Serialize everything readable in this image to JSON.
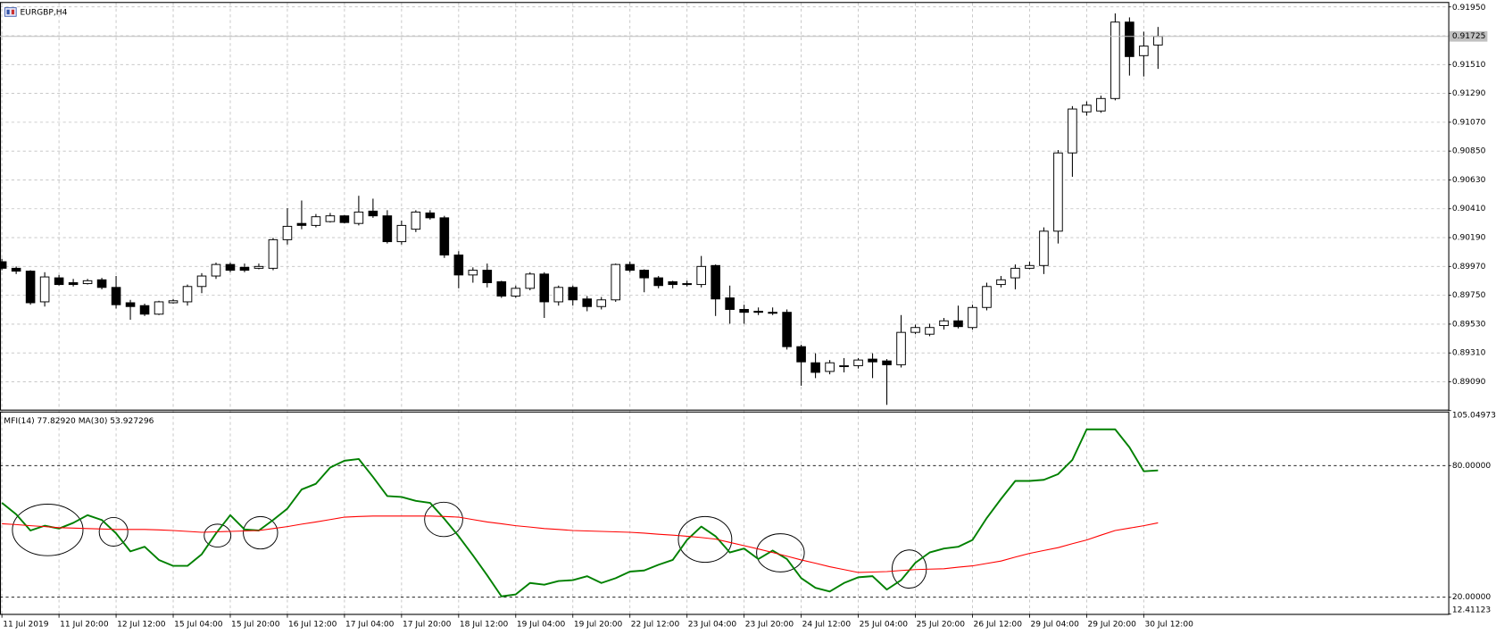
{
  "chart_data": [
    {
      "type": "candlestick",
      "title": "EURGBP,H4",
      "categories": [
        "11 Jul 2019",
        null,
        null,
        null,
        "11 Jul 20:00",
        null,
        null,
        null,
        "12 Jul 12:00",
        null,
        null,
        null,
        "15 Jul 04:00",
        null,
        null,
        null,
        "15 Jul 20:00",
        null,
        null,
        null,
        "16 Jul 12:00",
        null,
        null,
        null,
        "17 Jul 04:00",
        null,
        null,
        null,
        "17 Jul 20:00",
        null,
        null,
        null,
        "18 Jul 12:00",
        null,
        null,
        null,
        "19 Jul 04:00",
        null,
        null,
        null,
        "19 Jul 20:00",
        null,
        null,
        null,
        "22 Jul 12:00",
        null,
        null,
        null,
        "23 Jul 04:00",
        null,
        null,
        null,
        "23 Jul 20:00",
        null,
        null,
        null,
        "24 Jul 12:00",
        null,
        null,
        null,
        "25 Jul 04:00",
        null,
        null,
        null,
        "25 Jul 20:00",
        null,
        null,
        null,
        "26 Jul 12:00",
        null,
        null,
        null,
        "29 Jul 04:00",
        null,
        null,
        null,
        "29 Jul 20:00",
        null,
        null,
        null,
        "30 Jul 12:00",
        null
      ],
      "open": [
        0.90006,
        0.89956,
        0.89934,
        0.897,
        0.89883,
        0.89846,
        0.89839,
        0.89868,
        0.8981,
        0.89693,
        0.89671,
        0.89606,
        0.89693,
        0.897,
        0.89817,
        0.89897,
        0.89985,
        0.89963,
        0.89956,
        0.89956,
        0.90174,
        0.90298,
        0.90283,
        0.90312,
        0.90356,
        0.90298,
        0.90392,
        0.90356,
        0.90159,
        0.90254,
        0.90378,
        0.90341,
        0.90057,
        0.89905,
        0.89941,
        0.89853,
        0.89744,
        0.89803,
        0.89912,
        0.897,
        0.8981,
        0.89722,
        0.89664,
        0.89715,
        0.89985,
        0.89941,
        0.89883,
        0.89853,
        0.89839,
        0.89832,
        0.89977,
        0.8973,
        0.89642,
        0.89628,
        0.8962,
        0.8962,
        0.89358,
        0.89235,
        0.89169,
        0.89206,
        0.89213,
        0.89263,
        0.89249,
        0.8922,
        0.89467,
        0.89453,
        0.89519,
        0.89555,
        0.89504,
        0.89657,
        0.89832,
        0.89883,
        0.89956,
        0.89977,
        0.90239,
        0.90836,
        0.91149,
        0.91156,
        0.91251,
        0.91834,
        0.91578,
        0.91659
      ],
      "high": [
        0.90028,
        0.8997,
        0.89941,
        0.89926,
        0.89905,
        0.89875,
        0.89875,
        0.89883,
        0.89897,
        0.89715,
        0.89686,
        0.89708,
        0.89722,
        0.89832,
        0.89919,
        0.89999,
        0.89999,
        0.89992,
        0.89992,
        0.90188,
        0.90414,
        0.90473,
        0.9037,
        0.90378,
        0.90363,
        0.90509,
        0.90487,
        0.90399,
        0.9032,
        0.90399,
        0.90399,
        0.90356,
        0.90086,
        0.89963,
        0.89992,
        0.89861,
        0.89824,
        0.89926,
        0.89926,
        0.89824,
        0.89824,
        0.89744,
        0.89737,
        0.89992,
        0.90006,
        0.89948,
        0.89897,
        0.89861,
        0.89861,
        0.9005,
        0.89985,
        0.89824,
        0.89678,
        0.89657,
        0.89657,
        0.89642,
        0.89373,
        0.89307,
        0.89256,
        0.89271,
        0.89271,
        0.89307,
        0.89263,
        0.89599,
        0.89526,
        0.89533,
        0.89577,
        0.89671,
        0.89678,
        0.89846,
        0.89897,
        0.89985,
        0.90006,
        0.90268,
        0.90858,
        0.91193,
        0.91229,
        0.91273,
        0.919,
        0.9187,
        0.91761,
        0.91797
      ],
      "low": [
        0.89941,
        0.89912,
        0.89678,
        0.89664,
        0.89824,
        0.89817,
        0.89832,
        0.89795,
        0.89649,
        0.89563,
        0.89592,
        0.89599,
        0.89686,
        0.89671,
        0.89766,
        0.89875,
        0.89926,
        0.89926,
        0.89948,
        0.89941,
        0.90137,
        0.90254,
        0.90268,
        0.90305,
        0.90298,
        0.90283,
        0.90341,
        0.90145,
        0.90137,
        0.90232,
        0.90327,
        0.90035,
        0.89803,
        0.89846,
        0.8981,
        0.8973,
        0.8973,
        0.89788,
        0.89577,
        0.89671,
        0.89671,
        0.89628,
        0.89642,
        0.897,
        0.89926,
        0.89773,
        0.89803,
        0.89803,
        0.89817,
        0.8981,
        0.89592,
        0.89533,
        0.89533,
        0.89599,
        0.89599,
        0.89336,
        0.8906,
        0.89118,
        0.89147,
        0.89162,
        0.89191,
        0.89118,
        0.88914,
        0.89199,
        0.89453,
        0.89438,
        0.89489,
        0.89497,
        0.89489,
        0.89635,
        0.8981,
        0.89795,
        0.89948,
        0.89912,
        0.90145,
        0.90654,
        0.9112,
        0.91142,
        0.91237,
        0.91426,
        0.91419,
        0.91477
      ],
      "close": [
        0.89956,
        0.89934,
        0.89693,
        0.8989,
        0.89832,
        0.89832,
        0.89861,
        0.8981,
        0.89678,
        0.89664,
        0.89606,
        0.897,
        0.89708,
        0.89817,
        0.89897,
        0.89985,
        0.89941,
        0.89941,
        0.8997,
        0.90174,
        0.90276,
        0.90283,
        0.90349,
        0.90356,
        0.90305,
        0.90385,
        0.90356,
        0.90159,
        0.90283,
        0.90385,
        0.90341,
        0.90057,
        0.89905,
        0.89941,
        0.89846,
        0.89744,
        0.89803,
        0.89912,
        0.897,
        0.8981,
        0.89715,
        0.89664,
        0.89715,
        0.89985,
        0.89941,
        0.89883,
        0.89824,
        0.89832,
        0.89832,
        0.8997,
        0.89722,
        0.89642,
        0.8962,
        0.8962,
        0.89613,
        0.89358,
        0.89242,
        0.89162,
        0.89235,
        0.89213,
        0.89256,
        0.89242,
        0.8922,
        0.89467,
        0.89504,
        0.89504,
        0.89555,
        0.89511,
        0.89657,
        0.89817,
        0.89868,
        0.89956,
        0.89977,
        0.90239,
        0.90836,
        0.91171,
        0.912,
        0.91251,
        0.91834,
        0.91571,
        0.91651,
        0.91725
      ],
      "up_color": "#ffffff",
      "down_color": "#000000",
      "ylim": [
        0.88885,
        0.9198
      ],
      "yticks": [
        {
          "value": 0.9195,
          "label": "0.91950"
        },
        {
          "value": 0.9173,
          "label": "0.91730"
        },
        {
          "value": 0.9151,
          "label": "0.91510"
        },
        {
          "value": 0.9129,
          "label": "0.91290"
        },
        {
          "value": 0.9107,
          "label": "0.91070"
        },
        {
          "value": 0.9085,
          "label": "0.90850"
        },
        {
          "value": 0.9063,
          "label": "0.90630"
        },
        {
          "value": 0.9041,
          "label": "0.90410"
        },
        {
          "value": 0.9019,
          "label": "0.90190"
        },
        {
          "value": 0.8997,
          "label": "0.89970"
        },
        {
          "value": 0.8975,
          "label": "0.89750"
        },
        {
          "value": 0.8953,
          "label": "0.89530"
        },
        {
          "value": 0.8931,
          "label": "0.89310"
        },
        {
          "value": 0.8909,
          "label": "0.89090"
        }
      ],
      "price_line": {
        "value": 0.91725,
        "label": "0.91725"
      },
      "grid": true
    },
    {
      "type": "line",
      "title": "MFI(14) 77.82920 MA(30) 53.927296",
      "series": [
        {
          "color": "#008000",
          "values": [
            63.0,
            57.8,
            50.4,
            52.6,
            51.3,
            53.9,
            57.4,
            55.2,
            49.1,
            40.9,
            43.0,
            37.0,
            34.3,
            34.3,
            39.6,
            49.1,
            57.4,
            50.9,
            50.4,
            55.2,
            60.4,
            69.1,
            71.7,
            79.1,
            82.2,
            83.0,
            74.8,
            66.1,
            65.7,
            63.9,
            63.0,
            55.7,
            47.8,
            39.1,
            30.0,
            20.4,
            21.3,
            26.5,
            25.7,
            27.4,
            27.8,
            29.6,
            26.5,
            28.7,
            31.7,
            32.2,
            34.8,
            37.0,
            46.1,
            52.2,
            47.8,
            40.4,
            42.2,
            37.4,
            41.3,
            37.4,
            28.7,
            24.3,
            22.6,
            26.5,
            29.1,
            29.6,
            23.5,
            27.8,
            35.7,
            40.4,
            42.2,
            43.0,
            46.1,
            56.1,
            64.8,
            73.0,
            73.0,
            73.5,
            76.1,
            82.6,
            96.5,
            96.5,
            96.5,
            88.3,
            77.4,
            77.8
          ]
        },
        {
          "color": "#ff0000",
          "values": [
            53.5,
            53.1,
            52.6,
            52.2,
            51.7,
            51.5,
            51.3,
            51.1,
            50.9,
            50.9,
            50.9,
            50.7,
            50.4,
            50.0,
            49.6,
            49.8,
            50.0,
            50.2,
            50.4,
            51.3,
            52.2,
            53.3,
            54.3,
            55.4,
            56.5,
            56.8,
            57.0,
            57.0,
            57.0,
            57.0,
            57.0,
            56.8,
            56.5,
            55.4,
            54.3,
            53.5,
            52.6,
            52.0,
            51.3,
            50.9,
            50.4,
            50.2,
            50.0,
            49.8,
            49.6,
            49.2,
            48.7,
            48.3,
            47.8,
            47.2,
            46.5,
            45.0,
            43.5,
            42.0,
            40.4,
            38.7,
            37.0,
            35.5,
            33.9,
            32.6,
            31.3,
            31.5,
            31.7,
            32.2,
            32.6,
            32.8,
            33.0,
            33.7,
            34.3,
            35.4,
            36.5,
            38.3,
            40.0,
            41.3,
            42.6,
            44.4,
            46.1,
            48.3,
            50.4,
            51.5,
            52.6,
            53.9
          ]
        }
      ],
      "ylim": [
        12.41123,
        105.04973
      ],
      "yticks": [
        {
          "value": 105.04973,
          "label": "105.04973"
        },
        {
          "value": 80,
          "label": "80.00000"
        },
        {
          "value": 20,
          "label": "20.00000"
        },
        {
          "value": 12.41123,
          "label": "12.41123"
        }
      ],
      "levels": [
        80,
        20
      ],
      "grid": false
    }
  ]
}
